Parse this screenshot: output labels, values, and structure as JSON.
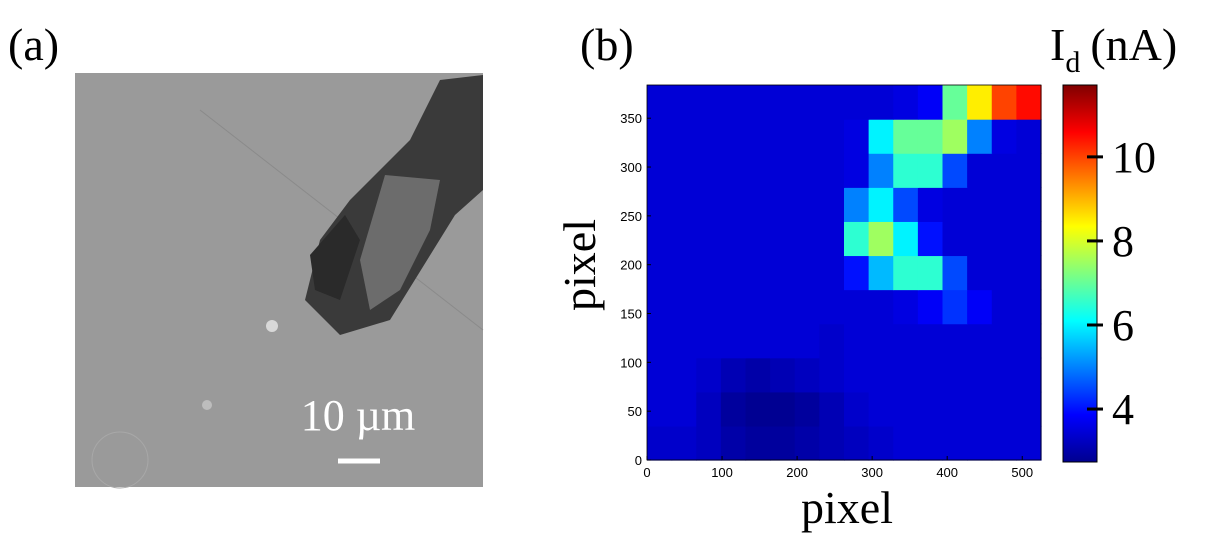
{
  "chart_data": [
    {
      "type": "image",
      "panel_label": "(a)",
      "scale_bar_label": "10 µm"
    },
    {
      "type": "heatmap",
      "panel_label": "(b)",
      "x_label": "pixel",
      "y_label": "pixel",
      "colorbar_label": {
        "symbol": "I",
        "subscript": "d",
        "unit": "(nA)"
      },
      "colormap": "jet",
      "xlim": [
        0,
        525
      ],
      "xticks": [
        0,
        100,
        200,
        300,
        400,
        500
      ],
      "ylim": [
        0,
        384
      ],
      "yticks": [
        0,
        50,
        100,
        150,
        200,
        250,
        300,
        350
      ],
      "clim": [
        2.74,
        11.71
      ],
      "cticks": [
        4,
        6,
        8,
        10
      ],
      "z": [
        [
          3.4,
          3.4,
          3.3,
          3.1,
          3.0,
          3.0,
          3.1,
          3.2,
          3.3,
          3.4,
          3.5,
          3.5,
          3.5,
          3.5,
          3.5,
          3.5
        ],
        [
          3.5,
          3.5,
          3.3,
          3.0,
          2.9,
          2.9,
          3.0,
          3.2,
          3.4,
          3.5,
          3.5,
          3.5,
          3.5,
          3.5,
          3.5,
          3.5
        ],
        [
          3.5,
          3.5,
          3.4,
          3.2,
          3.1,
          3.2,
          3.3,
          3.4,
          3.5,
          3.5,
          3.5,
          3.5,
          3.5,
          3.5,
          3.5,
          3.5
        ],
        [
          3.5,
          3.5,
          3.5,
          3.5,
          3.5,
          3.5,
          3.5,
          3.4,
          3.5,
          3.5,
          3.5,
          3.5,
          3.5,
          3.5,
          3.5,
          3.5
        ],
        [
          3.5,
          3.5,
          3.5,
          3.5,
          3.5,
          3.5,
          3.5,
          3.5,
          3.5,
          3.5,
          3.6,
          3.8,
          4.3,
          3.8,
          3.5,
          3.5
        ],
        [
          3.5,
          3.5,
          3.5,
          3.5,
          3.5,
          3.5,
          3.5,
          3.5,
          4.0,
          5.5,
          6.5,
          6.5,
          4.5,
          3.5,
          3.5,
          3.5
        ],
        [
          3.5,
          3.5,
          3.5,
          3.5,
          3.5,
          3.5,
          3.5,
          3.5,
          6.5,
          7.5,
          6.0,
          4.0,
          3.5,
          3.5,
          3.5,
          3.5
        ],
        [
          3.5,
          3.5,
          3.5,
          3.5,
          3.5,
          3.5,
          3.5,
          3.5,
          5.0,
          6.0,
          4.5,
          3.6,
          3.5,
          3.5,
          3.5,
          3.5
        ],
        [
          3.5,
          3.5,
          3.5,
          3.5,
          3.5,
          3.5,
          3.5,
          3.5,
          3.6,
          5.0,
          6.5,
          6.5,
          4.5,
          3.5,
          3.5,
          3.5
        ],
        [
          3.5,
          3.5,
          3.5,
          3.5,
          3.5,
          3.5,
          3.5,
          3.5,
          3.6,
          6.0,
          7.0,
          7.0,
          7.5,
          5.0,
          3.6,
          3.5
        ],
        [
          3.5,
          3.5,
          3.5,
          3.5,
          3.5,
          3.5,
          3.5,
          3.5,
          3.5,
          3.5,
          3.6,
          3.8,
          7.0,
          8.5,
          10.0,
          10.5
        ]
      ]
    }
  ]
}
